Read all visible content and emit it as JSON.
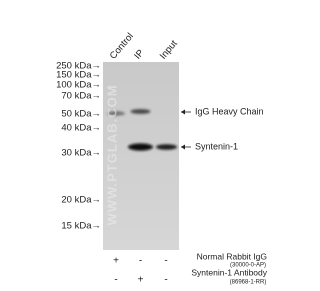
{
  "lanes": [
    "Control",
    "IP",
    "Input"
  ],
  "markers": [
    "250 kDa→",
    "150 kDa→",
    "100 kDa→",
    "70 kDa→",
    "50 kDa→",
    "40 kDa→",
    "30 kDa→",
    "20 kDa→",
    "15 kDa→"
  ],
  "band_labels": [
    "IgG Heavy Chain",
    "Syntenin-1"
  ],
  "watermark": "WWW.PTGLAB.COM",
  "treatments": [
    {
      "name": "Normal Rabbit IgG",
      "catalog": "(30000-0-AP)",
      "signs": [
        "+",
        "-",
        "-"
      ]
    },
    {
      "name": "Syntenin-1 Antibody",
      "catalog": "(86968-1-RR)",
      "signs": [
        "-",
        "+",
        "-"
      ]
    }
  ]
}
